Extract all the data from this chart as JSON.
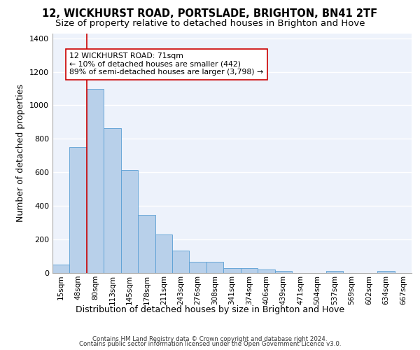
{
  "title": "12, WICKHURST ROAD, PORTSLADE, BRIGHTON, BN41 2TF",
  "subtitle": "Size of property relative to detached houses in Brighton and Hove",
  "xlabel": "Distribution of detached houses by size in Brighton and Hove",
  "ylabel": "Number of detached properties",
  "footer1": "Contains HM Land Registry data © Crown copyright and database right 2024.",
  "footer2": "Contains public sector information licensed under the Open Government Licence v3.0.",
  "annotation_line1": "12 WICKHURST ROAD: 71sqm",
  "annotation_line2": "← 10% of detached houses are smaller (442)",
  "annotation_line3": "89% of semi-detached houses are larger (3,798) →",
  "bar_color": "#b8d0ea",
  "bar_edge_color": "#5a9fd4",
  "marker_line_color": "#cc0000",
  "marker_bar_index": 1,
  "categories": [
    "15sqm",
    "48sqm",
    "80sqm",
    "113sqm",
    "145sqm",
    "178sqm",
    "211sqm",
    "243sqm",
    "276sqm",
    "308sqm",
    "341sqm",
    "374sqm",
    "406sqm",
    "439sqm",
    "471sqm",
    "504sqm",
    "537sqm",
    "569sqm",
    "602sqm",
    "634sqm",
    "667sqm"
  ],
  "values": [
    50,
    752,
    1098,
    866,
    613,
    348,
    228,
    133,
    65,
    65,
    28,
    28,
    20,
    12,
    0,
    0,
    12,
    0,
    0,
    12,
    0
  ],
  "ylim": [
    0,
    1430
  ],
  "background_color": "#edf2fb",
  "grid_color": "#ffffff",
  "title_fontsize": 10.5,
  "subtitle_fontsize": 9.5,
  "xlabel_fontsize": 9,
  "ylabel_fontsize": 9,
  "tick_fontsize": 7.5,
  "footer_fontsize": 6.2,
  "annotation_fontsize": 7.8
}
